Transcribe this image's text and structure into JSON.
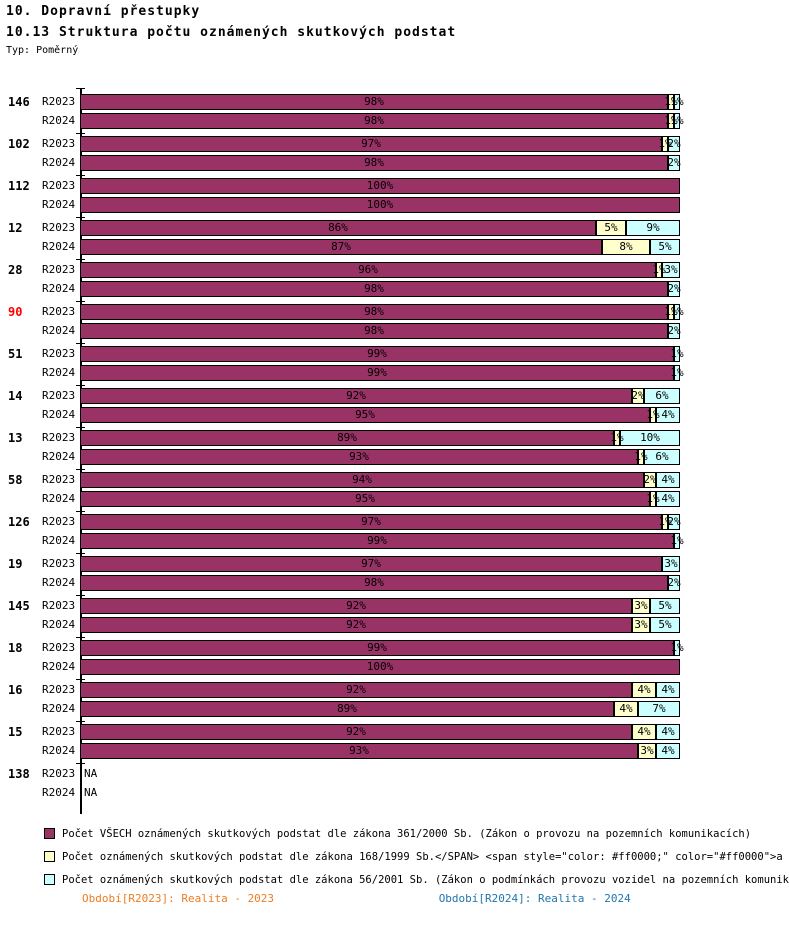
{
  "header": {
    "title1": "10. Dopravní přestupky",
    "title2": "10.13 Struktura počtu oznámených skutkových podstat",
    "type_label": "Typ: Poměrný"
  },
  "chart_data": {
    "type": "bar",
    "orientation": "horizontal",
    "stacked": true,
    "value_unit": "percent",
    "x_range": [
      0,
      100
    ],
    "row_labels": [
      "R2023",
      "R2024"
    ],
    "na_text": "NA",
    "colors": {
      "series1": "#993366",
      "series2": "#ffffcc",
      "series3": "#ccffff",
      "highlight_label": "#ff0000",
      "default_label": "#000000"
    },
    "series_names": [
      "zakon-361-2000",
      "zakon-168-1999",
      "zakon-56-2001"
    ],
    "groups": [
      {
        "label": "146",
        "label_color": "#000000",
        "rows": [
          [
            98,
            1,
            1
          ],
          [
            98,
            1,
            1
          ]
        ]
      },
      {
        "label": "102",
        "label_color": "#000000",
        "rows": [
          [
            97,
            1,
            2
          ],
          [
            98,
            0,
            2
          ]
        ]
      },
      {
        "label": "112",
        "label_color": "#000000",
        "rows": [
          [
            100,
            0,
            0
          ],
          [
            100,
            0,
            0
          ]
        ]
      },
      {
        "label": "12",
        "label_color": "#000000",
        "rows": [
          [
            86,
            5,
            9
          ],
          [
            87,
            8,
            5
          ]
        ]
      },
      {
        "label": "28",
        "label_color": "#000000",
        "rows": [
          [
            96,
            1,
            3
          ],
          [
            98,
            0,
            2
          ]
        ]
      },
      {
        "label": "90",
        "label_color": "#ff0000",
        "rows": [
          [
            98,
            1,
            1
          ],
          [
            98,
            0,
            2
          ]
        ]
      },
      {
        "label": "51",
        "label_color": "#000000",
        "rows": [
          [
            99,
            0,
            1
          ],
          [
            99,
            0,
            1
          ]
        ]
      },
      {
        "label": "14",
        "label_color": "#000000",
        "rows": [
          [
            92,
            2,
            6
          ],
          [
            95,
            1,
            4
          ]
        ]
      },
      {
        "label": "13",
        "label_color": "#000000",
        "rows": [
          [
            89,
            1,
            10
          ],
          [
            93,
            1,
            6
          ]
        ]
      },
      {
        "label": "58",
        "label_color": "#000000",
        "rows": [
          [
            94,
            2,
            4
          ],
          [
            95,
            1,
            4
          ]
        ]
      },
      {
        "label": "126",
        "label_color": "#000000",
        "rows": [
          [
            97,
            1,
            2
          ],
          [
            99,
            0,
            1
          ]
        ]
      },
      {
        "label": "19",
        "label_color": "#000000",
        "rows": [
          [
            97,
            0,
            3
          ],
          [
            98,
            0,
            2
          ]
        ]
      },
      {
        "label": "145",
        "label_color": "#000000",
        "rows": [
          [
            92,
            3,
            5
          ],
          [
            92,
            3,
            5
          ]
        ]
      },
      {
        "label": "18",
        "label_color": "#000000",
        "rows": [
          [
            99,
            0,
            1
          ],
          [
            100,
            0,
            0
          ]
        ]
      },
      {
        "label": "16",
        "label_color": "#000000",
        "rows": [
          [
            92,
            4,
            4
          ],
          [
            89,
            4,
            7
          ]
        ]
      },
      {
        "label": "15",
        "label_color": "#000000",
        "rows": [
          [
            92,
            4,
            4
          ],
          [
            93,
            3,
            4
          ]
        ]
      },
      {
        "label": "138",
        "label_color": "#000000",
        "rows": [
          "NA",
          "NA"
        ]
      }
    ],
    "legend": [
      {
        "color": "#993366",
        "label": "Počet VŠECH oznámených skutkových podstat dle zákona 361/2000 Sb. (Zákon o provozu na pozemních komunikacích)"
      },
      {
        "color": "#ffffcc",
        "label": "Počet oznámených skutkových podstat dle zákona 168/1999 Sb.</SPAN> <span style=\"color: #ff0000;\" color=\"#ff0000\">a"
      },
      {
        "color": "#ccffff",
        "label": "Počet oznámených skutkových podstat dle zákona 56/2001 Sb. (Zákon o podmínkách provozu vozidel na pozemních komunik"
      }
    ],
    "footer": [
      {
        "color": "#ef7d22",
        "label": "Období[R2023]: Realita - 2023"
      },
      {
        "color": "#2176ae",
        "label": "Období[R2024]: Realita - 2024"
      }
    ]
  }
}
